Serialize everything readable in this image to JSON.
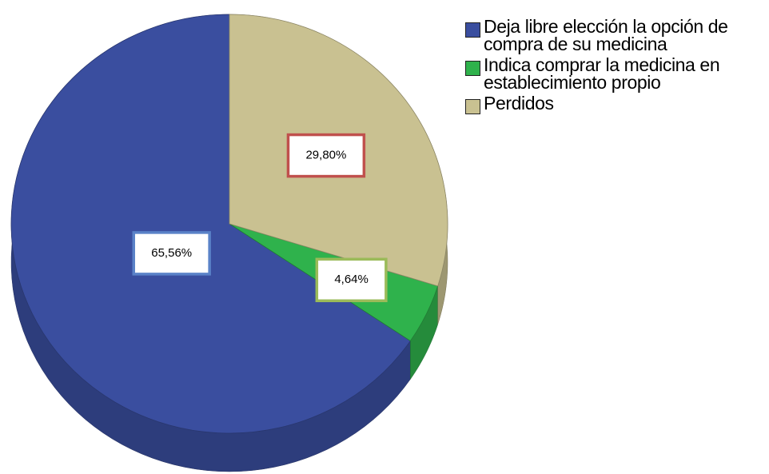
{
  "chart_data": {
    "type": "pie",
    "categories": [
      "Deja libre elección la opción de compra de su medicina",
      "Indica comprar la medicina en establecimiento propio",
      "Perdidos"
    ],
    "values": [
      65.56,
      4.64,
      29.8
    ],
    "value_labels": [
      "65,56%",
      "4,64%",
      "29,80%"
    ],
    "colors": [
      "#3a4e9f",
      "#2fb24c",
      "#c9c191"
    ],
    "label_borders": [
      "#5a82c8",
      "#9bbb59",
      "#c0504d"
    ],
    "legend": "right"
  }
}
